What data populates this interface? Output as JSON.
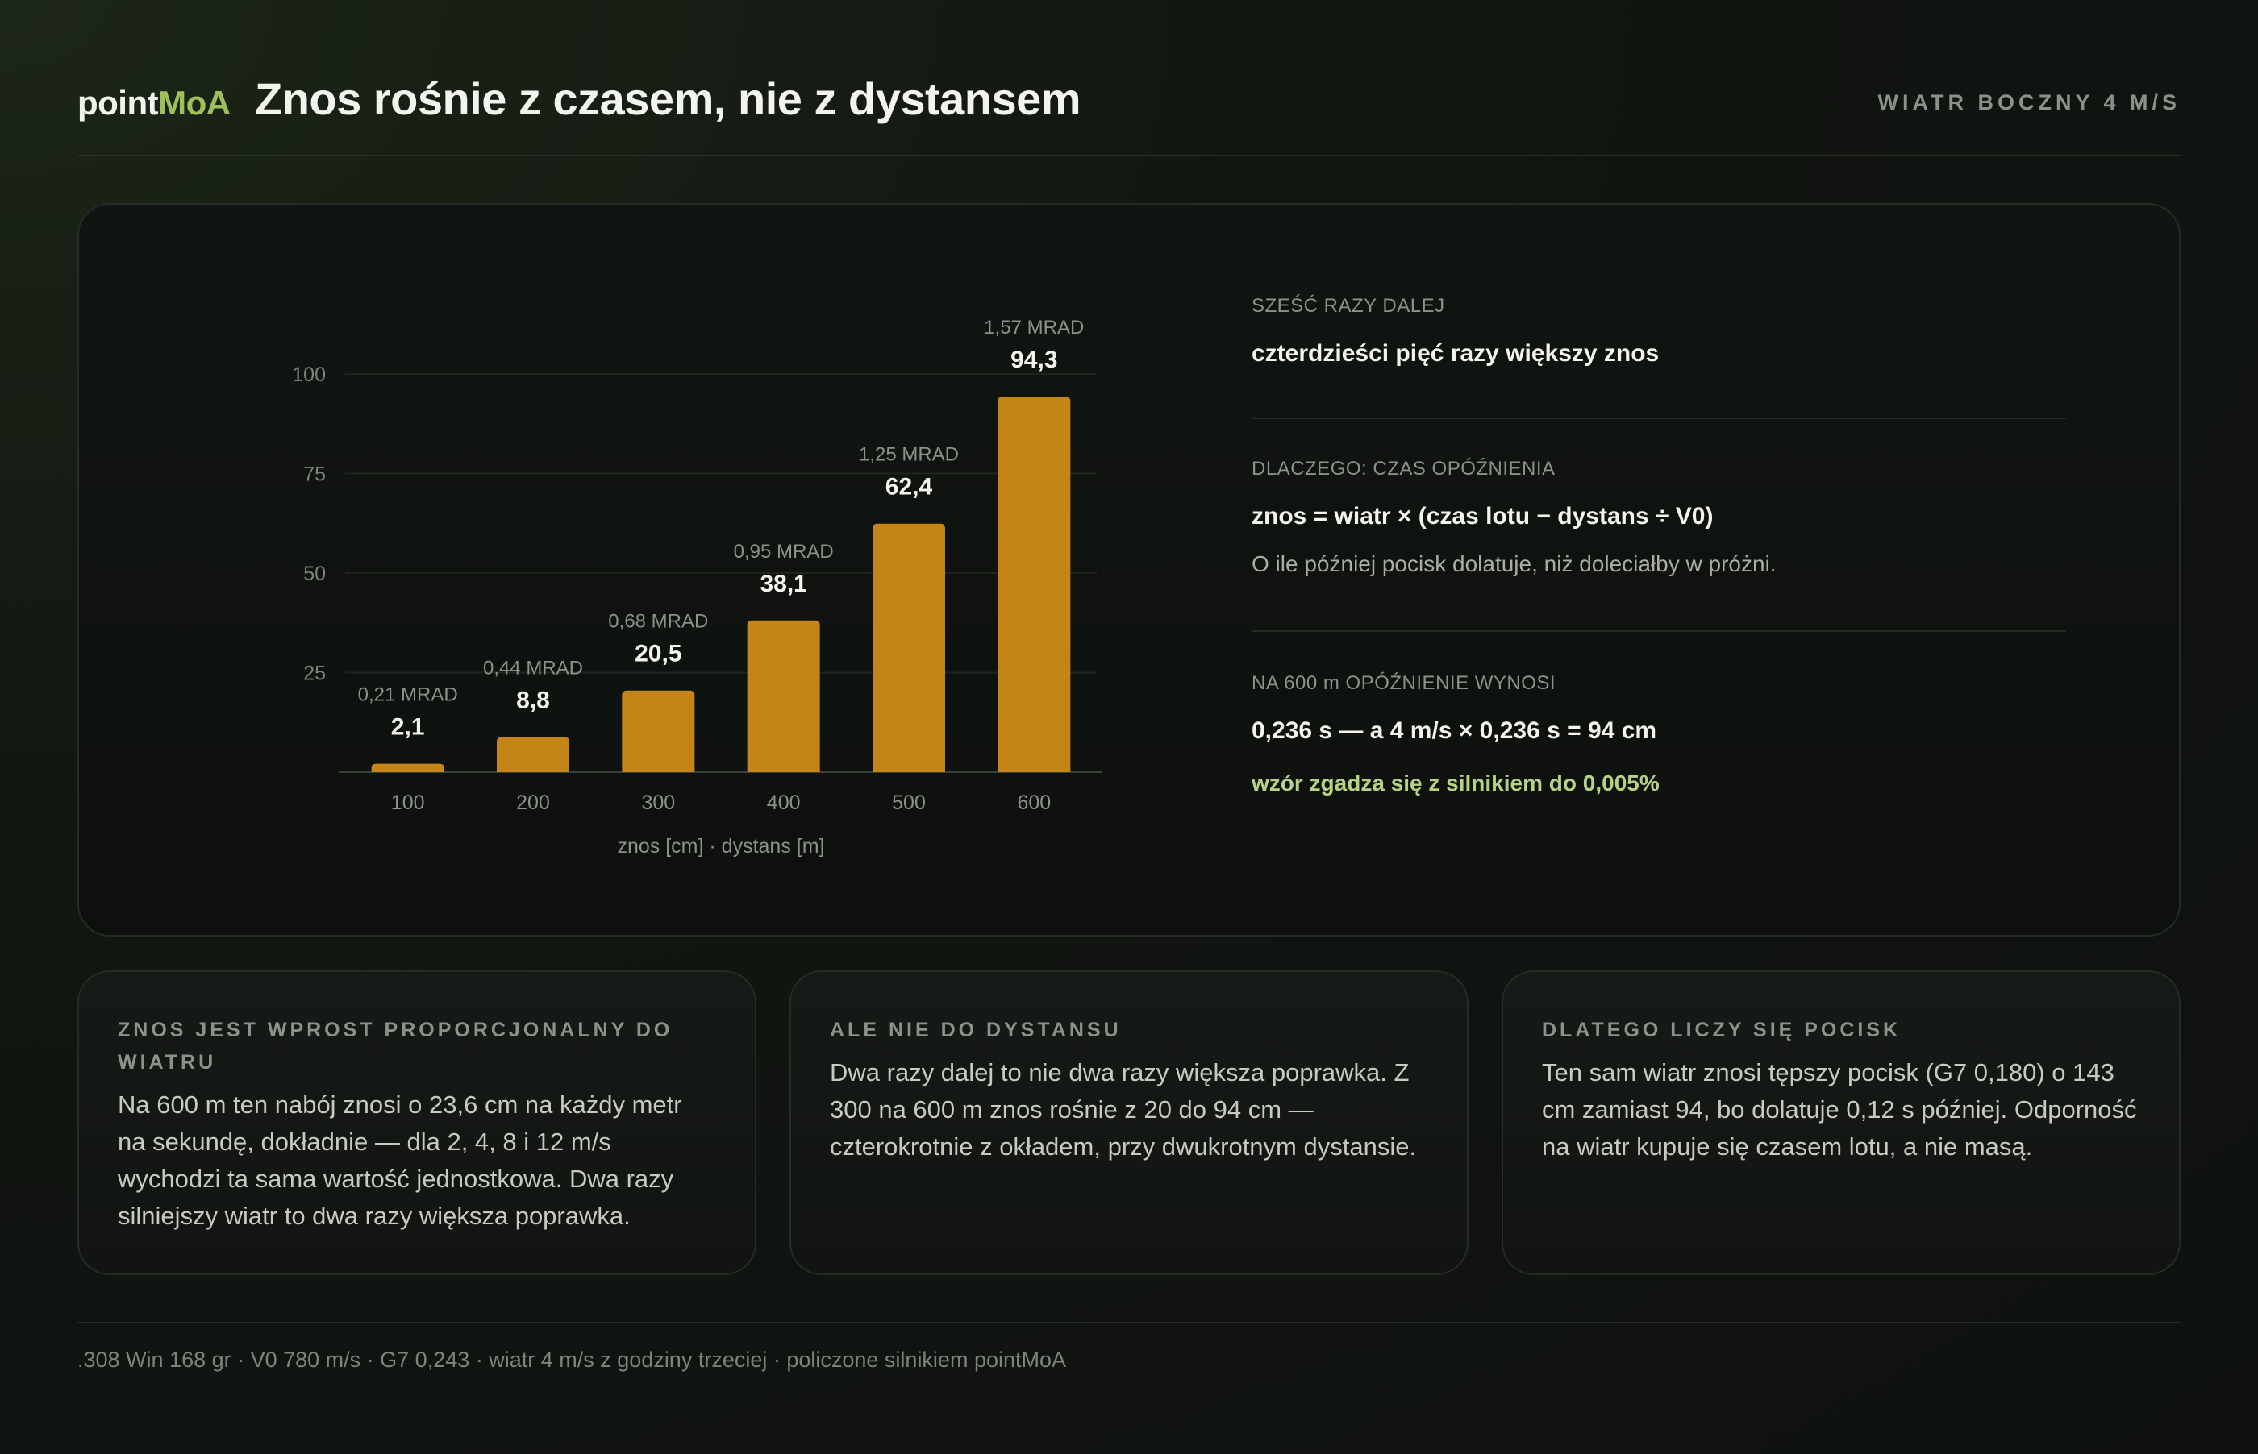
{
  "header": {
    "logo_main": "point",
    "logo_accent": "MoA",
    "title": "Znos rośnie z czasem, nie z dystansem",
    "badge": "WIATR BOCZNY 4 M/S"
  },
  "chart_data": {
    "type": "bar",
    "categories": [
      "100",
      "200",
      "300",
      "400",
      "500",
      "600"
    ],
    "values": [
      2.1,
      8.8,
      20.5,
      38.1,
      62.4,
      94.3
    ],
    "value_labels": [
      "2,1",
      "8,8",
      "20,5",
      "38,1",
      "62,4",
      "94,3"
    ],
    "secondary_labels": [
      "0,21 MRAD",
      "0,44 MRAD",
      "0,68 MRAD",
      "0,95 MRAD",
      "1,25 MRAD",
      "1,57 MRAD"
    ],
    "yticks": [
      25,
      50,
      75,
      100
    ],
    "ylim": [
      0,
      100
    ],
    "xlabel": "znos [cm] · dystans [m]",
    "ylabel": "",
    "title": "",
    "grid": true,
    "bar_color": "#c48416"
  },
  "facts": [
    {
      "label": "SZEŚĆ RAZY DALEJ",
      "value": "czterdzieści pięć razy większy znos"
    },
    {
      "label": "DLACZEGO: CZAS OPÓŹNIENIA",
      "value": "znos = wiatr × (czas lotu − dystans ÷ V0)",
      "sub": "O ile później pocisk dolatuje, niż doleciałby w próżni."
    },
    {
      "label": "NA 600 m OPÓŹNIENIE WYNOSI",
      "value": "0,236 s — a 4 m/s × 0,236 s = 94 cm",
      "note": "wzór zgadza się z silnikiem do 0,005%"
    }
  ],
  "cards": [
    {
      "title": "ZNOS JEST WPROST PROPORCJONALNY DO WIATRU",
      "text": "Na 600 m ten nabój znosi o 23,6 cm na każdy metr na sekundę, dokładnie — dla 2, 4, 8 i 12 m/s wychodzi ta sama wartość jednostkowa. Dwa razy silniejszy wiatr to dwa razy większa poprawka."
    },
    {
      "title": "ALE NIE DO DYSTANSU",
      "text": "Dwa razy dalej to nie dwa razy większa poprawka. Z 300 na 600 m znos rośnie z 20 do 94 cm — czterokrotnie z okładem, przy dwukrotnym dystansie."
    },
    {
      "title": "DLATEGO LICZY SIĘ POCISK",
      "text": "Ten sam wiatr znosi tępszy pocisk (G7 0,180) o 143 cm zamiast 94, bo dolatuje 0,12 s później. Odporność na wiatr kupuje się czasem lotu, a nie masą."
    }
  ],
  "footer": ".308 Win 168 gr · V0 780 m/s · G7 0,243 · wiatr 4 m/s z godziny trzeciej · policzone silnikiem pointMoA"
}
